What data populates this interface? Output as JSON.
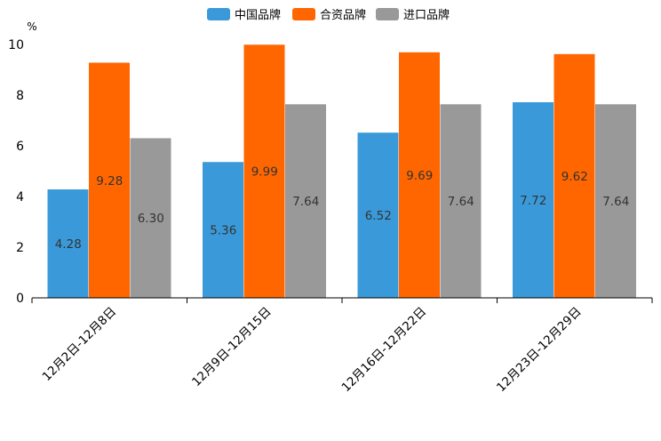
{
  "chart_data": {
    "type": "bar",
    "title": "",
    "xlabel": "",
    "ylabel": "%",
    "ylim": [
      0,
      10
    ],
    "yticks": [
      0,
      2,
      4,
      6,
      8,
      10
    ],
    "grid": false,
    "legend_position": "top-center",
    "categories": [
      "12月2日-12月8日",
      "12月9日-12月15日",
      "12月16日-12月22日",
      "12月23日-12月29日"
    ],
    "series": [
      {
        "name": "中国品牌",
        "color": "#3a9ad9",
        "values": [
          4.28,
          5.36,
          6.52,
          7.72
        ],
        "labels": [
          "4.28",
          "5.36",
          "6.52",
          "7.72"
        ]
      },
      {
        "name": "合资品牌",
        "color": "#ff6600",
        "values": [
          9.28,
          9.99,
          9.69,
          9.62
        ],
        "labels": [
          "9.28",
          "9.99",
          "9.69",
          "9.62"
        ]
      },
      {
        "name": "进口品牌",
        "color": "#999999",
        "values": [
          6.3,
          7.64,
          7.64,
          7.64
        ],
        "labels": [
          "6.30",
          "7.64",
          "7.64",
          "7.64"
        ]
      }
    ]
  }
}
